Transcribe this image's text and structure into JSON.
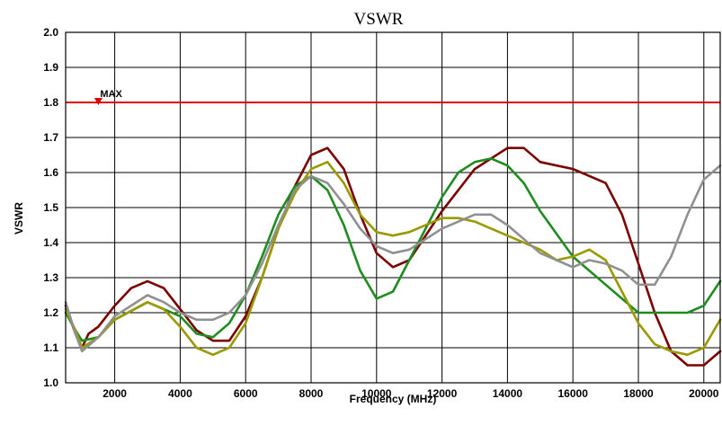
{
  "chart_data": {
    "type": "line",
    "title": "VSWR",
    "xlabel": "Frequency (MHz)",
    "ylabel": "VSWR",
    "xlim": [
      500,
      20500
    ],
    "ylim": [
      1.0,
      2.0
    ],
    "x_ticks": [
      2000,
      4000,
      6000,
      8000,
      10000,
      12000,
      14000,
      16000,
      18000,
      20000
    ],
    "y_ticks": [
      1.0,
      1.1,
      1.2,
      1.3,
      1.4,
      1.5,
      1.6,
      1.7,
      1.8,
      1.9,
      2.0
    ],
    "x_tick_labels": [
      "2000",
      "4000",
      "6000",
      "8000",
      "10000",
      "12000",
      "14000",
      "16000",
      "18000",
      "20000"
    ],
    "y_tick_labels": [
      "1.0",
      "1.1",
      "1.2",
      "1.3",
      "1.4",
      "1.5",
      "1.6",
      "1.7",
      "1.8",
      "1.9",
      "2.0"
    ],
    "grid": true,
    "limit_line": {
      "y": 1.8,
      "color": "#e00000",
      "label": "MAX",
      "marker_x": 1500
    },
    "series": [
      {
        "color": "#7b0000",
        "points": [
          [
            500,
            1.22
          ],
          [
            800,
            1.14
          ],
          [
            1000,
            1.1
          ],
          [
            1200,
            1.14
          ],
          [
            1500,
            1.16
          ],
          [
            2000,
            1.22
          ],
          [
            2500,
            1.27
          ],
          [
            3000,
            1.29
          ],
          [
            3500,
            1.27
          ],
          [
            4000,
            1.21
          ],
          [
            4500,
            1.15
          ],
          [
            5000,
            1.12
          ],
          [
            5500,
            1.12
          ],
          [
            6000,
            1.19
          ],
          [
            6500,
            1.3
          ],
          [
            7000,
            1.44
          ],
          [
            7500,
            1.56
          ],
          [
            8000,
            1.65
          ],
          [
            8500,
            1.67
          ],
          [
            9000,
            1.61
          ],
          [
            9500,
            1.48
          ],
          [
            10000,
            1.37
          ],
          [
            10500,
            1.33
          ],
          [
            11000,
            1.35
          ],
          [
            12000,
            1.49
          ],
          [
            13000,
            1.61
          ],
          [
            14000,
            1.67
          ],
          [
            14500,
            1.67
          ],
          [
            15000,
            1.63
          ],
          [
            16000,
            1.61
          ],
          [
            17000,
            1.57
          ],
          [
            17500,
            1.48
          ],
          [
            18000,
            1.34
          ],
          [
            18500,
            1.2
          ],
          [
            19000,
            1.09
          ],
          [
            19500,
            1.05
          ],
          [
            20000,
            1.05
          ],
          [
            20500,
            1.09
          ]
        ]
      },
      {
        "color": "#1e8c1e",
        "points": [
          [
            500,
            1.2
          ],
          [
            800,
            1.15
          ],
          [
            1000,
            1.12
          ],
          [
            1500,
            1.13
          ],
          [
            2000,
            1.18
          ],
          [
            3000,
            1.23
          ],
          [
            4000,
            1.19
          ],
          [
            4500,
            1.14
          ],
          [
            5000,
            1.13
          ],
          [
            5500,
            1.17
          ],
          [
            6000,
            1.25
          ],
          [
            6500,
            1.36
          ],
          [
            7000,
            1.48
          ],
          [
            7500,
            1.56
          ],
          [
            8000,
            1.59
          ],
          [
            8500,
            1.55
          ],
          [
            9000,
            1.45
          ],
          [
            9500,
            1.32
          ],
          [
            10000,
            1.24
          ],
          [
            10500,
            1.26
          ],
          [
            11000,
            1.35
          ],
          [
            12000,
            1.53
          ],
          [
            12500,
            1.6
          ],
          [
            13000,
            1.63
          ],
          [
            13500,
            1.64
          ],
          [
            14000,
            1.62
          ],
          [
            14500,
            1.57
          ],
          [
            15000,
            1.49
          ],
          [
            16000,
            1.36
          ],
          [
            17000,
            1.28
          ],
          [
            17500,
            1.24
          ],
          [
            18000,
            1.2
          ],
          [
            18500,
            1.2
          ],
          [
            19000,
            1.2
          ],
          [
            19500,
            1.2
          ],
          [
            20000,
            1.22
          ],
          [
            20500,
            1.29
          ]
        ]
      },
      {
        "color": "#999900",
        "points": [
          [
            500,
            1.21
          ],
          [
            800,
            1.15
          ],
          [
            1000,
            1.1
          ],
          [
            1500,
            1.13
          ],
          [
            2000,
            1.18
          ],
          [
            3000,
            1.23
          ],
          [
            3500,
            1.21
          ],
          [
            4000,
            1.16
          ],
          [
            4500,
            1.1
          ],
          [
            5000,
            1.08
          ],
          [
            5500,
            1.1
          ],
          [
            6000,
            1.17
          ],
          [
            6500,
            1.3
          ],
          [
            7000,
            1.44
          ],
          [
            7500,
            1.54
          ],
          [
            8000,
            1.61
          ],
          [
            8500,
            1.63
          ],
          [
            9000,
            1.57
          ],
          [
            9500,
            1.48
          ],
          [
            10000,
            1.43
          ],
          [
            10500,
            1.42
          ],
          [
            11000,
            1.43
          ],
          [
            12000,
            1.47
          ],
          [
            12500,
            1.47
          ],
          [
            13000,
            1.46
          ],
          [
            14000,
            1.42
          ],
          [
            15000,
            1.38
          ],
          [
            15500,
            1.35
          ],
          [
            16000,
            1.36
          ],
          [
            16500,
            1.38
          ],
          [
            17000,
            1.35
          ],
          [
            17500,
            1.26
          ],
          [
            18000,
            1.17
          ],
          [
            18500,
            1.11
          ],
          [
            19000,
            1.09
          ],
          [
            19500,
            1.08
          ],
          [
            20000,
            1.1
          ],
          [
            20500,
            1.18
          ]
        ]
      },
      {
        "color": "#909090",
        "points": [
          [
            500,
            1.23
          ],
          [
            800,
            1.14
          ],
          [
            1000,
            1.09
          ],
          [
            1500,
            1.13
          ],
          [
            2000,
            1.19
          ],
          [
            3000,
            1.25
          ],
          [
            3500,
            1.23
          ],
          [
            4000,
            1.2
          ],
          [
            4500,
            1.18
          ],
          [
            5000,
            1.18
          ],
          [
            5500,
            1.2
          ],
          [
            6000,
            1.25
          ],
          [
            6500,
            1.34
          ],
          [
            7000,
            1.45
          ],
          [
            7500,
            1.55
          ],
          [
            8000,
            1.59
          ],
          [
            8500,
            1.57
          ],
          [
            9000,
            1.51
          ],
          [
            9500,
            1.44
          ],
          [
            10000,
            1.39
          ],
          [
            10500,
            1.37
          ],
          [
            11000,
            1.38
          ],
          [
            12000,
            1.44
          ],
          [
            13000,
            1.48
          ],
          [
            13500,
            1.48
          ],
          [
            14000,
            1.45
          ],
          [
            15000,
            1.37
          ],
          [
            16000,
            1.33
          ],
          [
            16500,
            1.35
          ],
          [
            17000,
            1.34
          ],
          [
            17500,
            1.32
          ],
          [
            18000,
            1.28
          ],
          [
            18500,
            1.28
          ],
          [
            19000,
            1.36
          ],
          [
            19500,
            1.48
          ],
          [
            20000,
            1.58
          ],
          [
            20500,
            1.62
          ]
        ]
      }
    ]
  }
}
